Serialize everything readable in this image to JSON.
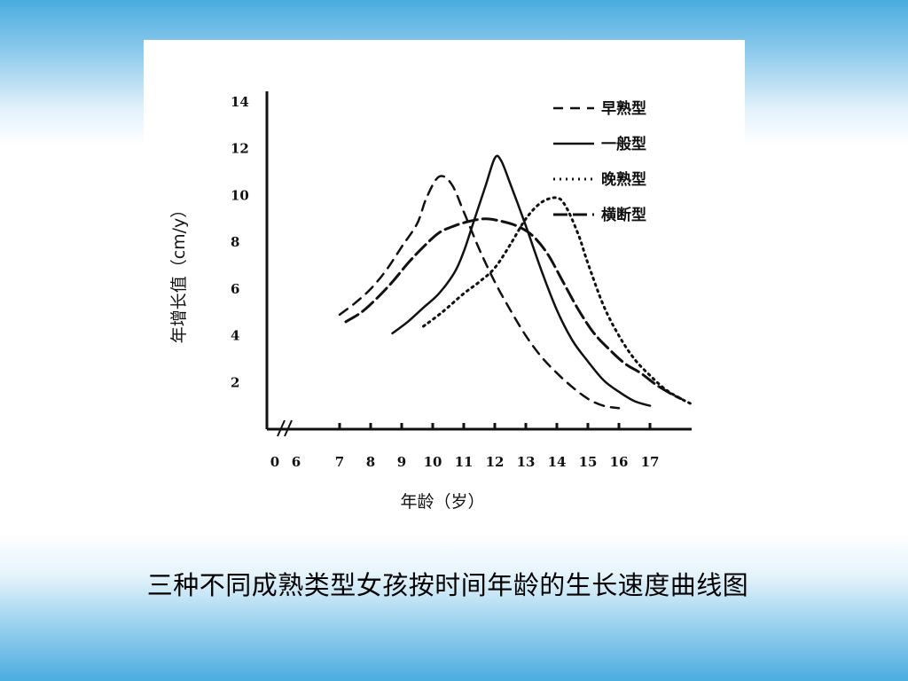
{
  "caption": "三种不同成熟类型女孩按时间年龄的生长速度曲线图",
  "chart_data": {
    "type": "line",
    "xlabel": "年龄（岁）",
    "ylabel": "年增长值（cm/y）",
    "ylim": [
      0,
      15
    ],
    "y_ticks": [
      2,
      4,
      6,
      8,
      10,
      12,
      14
    ],
    "x_ticks": [
      "0",
      "6",
      "7",
      "8",
      "9",
      "10",
      "11",
      "12",
      "13",
      "14",
      "15",
      "16",
      "17"
    ],
    "axis_break": true,
    "grid": false,
    "legend_position": "top-right",
    "series": [
      {
        "name": "早熟型",
        "style": "dashed",
        "points": [
          [
            7.0,
            4.9
          ],
          [
            7.5,
            5.4
          ],
          [
            8.0,
            6.0
          ],
          [
            8.5,
            6.8
          ],
          [
            9.0,
            7.8
          ],
          [
            9.5,
            8.8
          ],
          [
            9.8,
            9.9
          ],
          [
            10.2,
            10.8
          ],
          [
            10.6,
            10.5
          ],
          [
            11.0,
            9.3
          ],
          [
            11.5,
            7.7
          ],
          [
            12.0,
            6.3
          ],
          [
            12.5,
            5.1
          ],
          [
            13.0,
            4.0
          ],
          [
            13.5,
            3.1
          ],
          [
            14.0,
            2.4
          ],
          [
            14.5,
            1.8
          ],
          [
            15.0,
            1.3
          ],
          [
            15.5,
            1.0
          ],
          [
            16.0,
            0.9
          ]
        ]
      },
      {
        "name": "一般型",
        "style": "solid",
        "points": [
          [
            8.7,
            4.1
          ],
          [
            9.2,
            4.6
          ],
          [
            9.7,
            5.2
          ],
          [
            10.2,
            5.8
          ],
          [
            10.7,
            6.7
          ],
          [
            11.0,
            7.6
          ],
          [
            11.3,
            8.8
          ],
          [
            11.7,
            10.4
          ],
          [
            12.0,
            11.6
          ],
          [
            12.2,
            11.5
          ],
          [
            12.5,
            10.5
          ],
          [
            13.0,
            8.7
          ],
          [
            13.5,
            6.8
          ],
          [
            14.0,
            5.1
          ],
          [
            14.5,
            3.8
          ],
          [
            15.0,
            2.9
          ],
          [
            15.5,
            2.1
          ],
          [
            16.0,
            1.6
          ],
          [
            16.5,
            1.2
          ],
          [
            17.0,
            1.0
          ]
        ]
      },
      {
        "name": "晚熟型",
        "style": "dotted",
        "points": [
          [
            9.7,
            4.4
          ],
          [
            10.3,
            5.0
          ],
          [
            11.0,
            5.8
          ],
          [
            11.5,
            6.3
          ],
          [
            12.0,
            6.9
          ],
          [
            12.5,
            7.9
          ],
          [
            13.0,
            9.0
          ],
          [
            13.5,
            9.7
          ],
          [
            14.0,
            9.9
          ],
          [
            14.3,
            9.5
          ],
          [
            14.7,
            8.3
          ],
          [
            15.0,
            7.1
          ],
          [
            15.5,
            5.3
          ],
          [
            16.0,
            4.0
          ],
          [
            16.5,
            3.0
          ],
          [
            17.0,
            2.3
          ],
          [
            17.5,
            1.7
          ],
          [
            18.0,
            1.3
          ],
          [
            18.3,
            1.1
          ]
        ]
      },
      {
        "name": "横断型",
        "style": "dashdot",
        "points": [
          [
            7.2,
            4.6
          ],
          [
            7.7,
            5.0
          ],
          [
            8.2,
            5.6
          ],
          [
            8.7,
            6.3
          ],
          [
            9.2,
            7.1
          ],
          [
            9.7,
            7.8
          ],
          [
            10.2,
            8.4
          ],
          [
            10.7,
            8.7
          ],
          [
            11.2,
            8.9
          ],
          [
            11.7,
            9.0
          ],
          [
            12.2,
            8.9
          ],
          [
            12.7,
            8.7
          ],
          [
            13.2,
            8.3
          ],
          [
            13.7,
            7.5
          ],
          [
            14.2,
            6.3
          ],
          [
            14.7,
            5.1
          ],
          [
            15.2,
            4.1
          ],
          [
            15.7,
            3.4
          ],
          [
            16.2,
            2.8
          ],
          [
            16.7,
            2.4
          ],
          [
            17.2,
            1.9
          ],
          [
            17.7,
            1.5
          ],
          [
            18.0,
            1.3
          ]
        ]
      }
    ]
  }
}
